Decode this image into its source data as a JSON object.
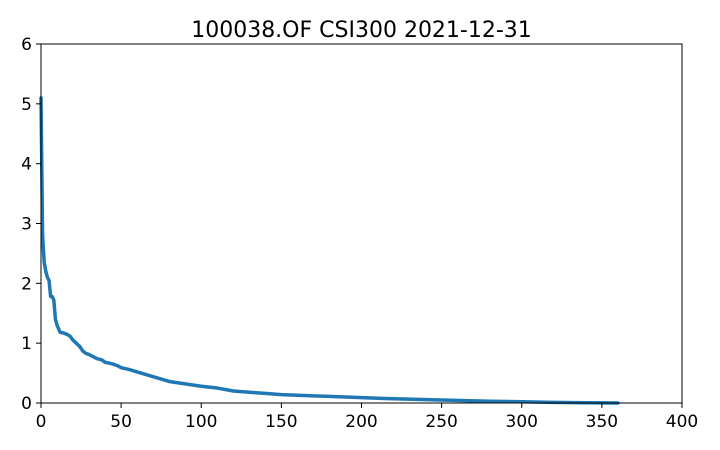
{
  "chart_data": {
    "type": "line",
    "title": "100038.OF CSI300 2021-12-31",
    "xlabel": "",
    "ylabel": "",
    "xlim": [
      0,
      400
    ],
    "ylim": [
      0,
      6
    ],
    "xticks": [
      0,
      50,
      100,
      150,
      200,
      250,
      300,
      350,
      400
    ],
    "yticks": [
      0,
      1,
      2,
      3,
      4,
      5,
      6
    ],
    "xtick_labels": [
      "0",
      "50",
      "100",
      "150",
      "200",
      "250",
      "300",
      "350",
      "400"
    ],
    "ytick_labels": [
      "0",
      "1",
      "2",
      "3",
      "4",
      "5",
      "6"
    ],
    "grid": false,
    "line_color": "#1f77b4",
    "series": [
      {
        "x": [
          0,
          1,
          2,
          3,
          4,
          5,
          6,
          7,
          8,
          9,
          10,
          12,
          14,
          16,
          18,
          20,
          22,
          24,
          26,
          28,
          30,
          35,
          38,
          40,
          42,
          45,
          48,
          50,
          55,
          60,
          65,
          70,
          75,
          80,
          90,
          100,
          110,
          120,
          130,
          140,
          150,
          160,
          170,
          180,
          190,
          200,
          220,
          250,
          280,
          300,
          320,
          340,
          360
        ],
        "y": [
          5.1,
          2.8,
          2.35,
          2.2,
          2.1,
          2.05,
          1.78,
          1.78,
          1.72,
          1.4,
          1.3,
          1.18,
          1.17,
          1.15,
          1.12,
          1.05,
          1.0,
          0.95,
          0.87,
          0.83,
          0.81,
          0.74,
          0.72,
          0.68,
          0.67,
          0.65,
          0.62,
          0.59,
          0.56,
          0.52,
          0.48,
          0.44,
          0.4,
          0.36,
          0.32,
          0.28,
          0.25,
          0.2,
          0.18,
          0.16,
          0.14,
          0.13,
          0.12,
          0.11,
          0.1,
          0.09,
          0.07,
          0.05,
          0.03,
          0.02,
          0.01,
          0.005,
          0.0
        ]
      }
    ]
  }
}
